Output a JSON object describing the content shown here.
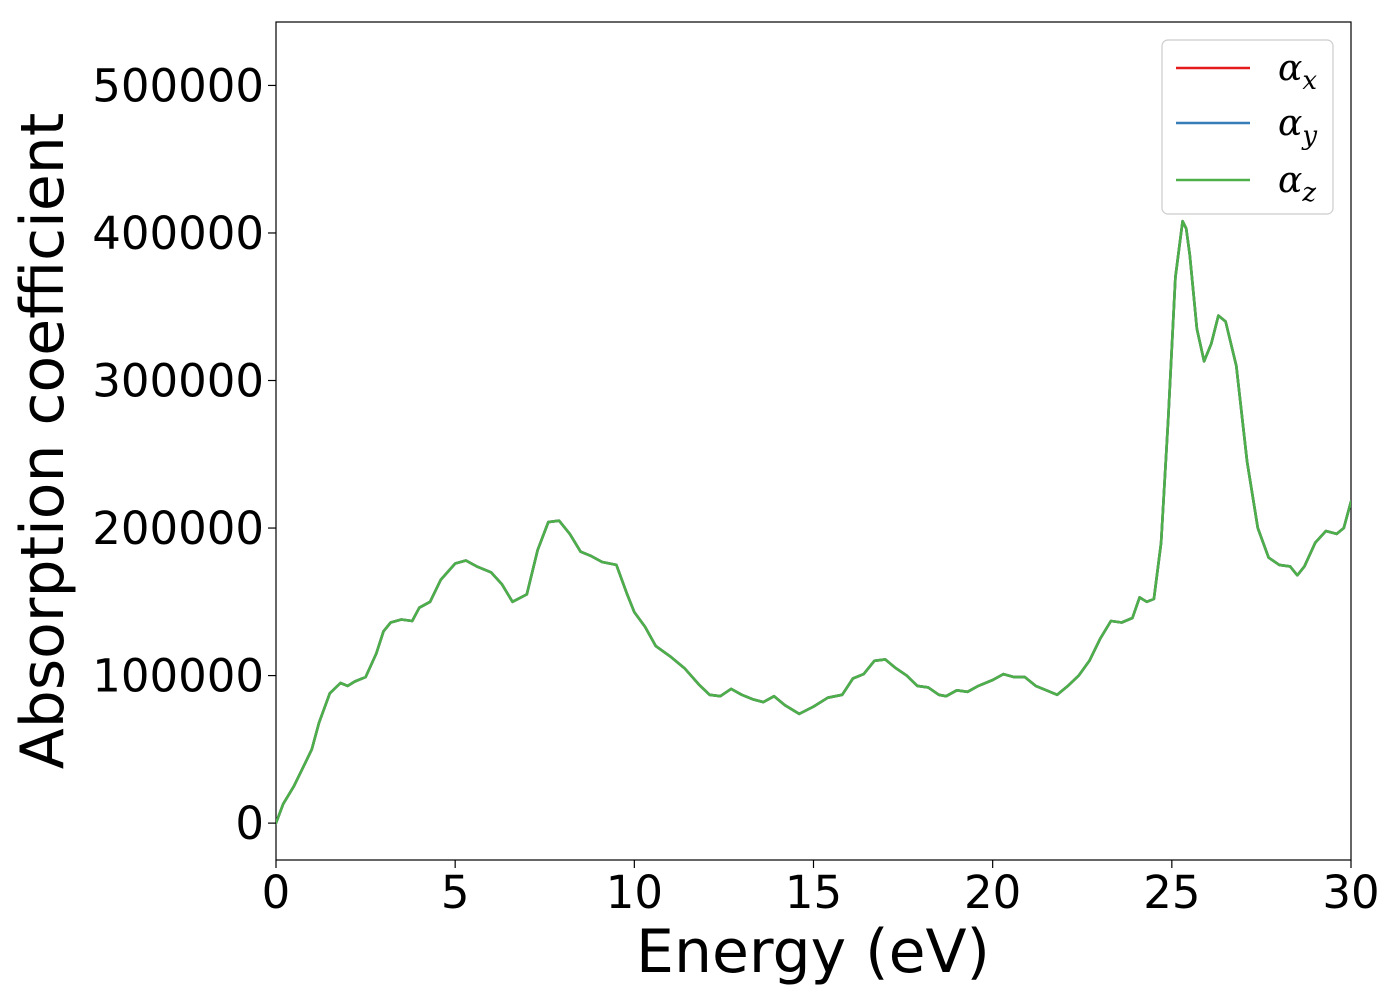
{
  "chart_data": {
    "type": "line",
    "xlabel": "Energy (eV)",
    "ylabel": "Absorption coefficient",
    "xlim": [
      0,
      30
    ],
    "ylim": [
      -25000,
      543000
    ],
    "xticks": [
      0,
      5,
      10,
      15,
      20,
      25,
      30
    ],
    "xtick_labels": [
      "0",
      "5",
      "10",
      "15",
      "20",
      "25",
      "30"
    ],
    "yticks": [
      0,
      100000,
      200000,
      300000,
      400000,
      500000
    ],
    "ytick_labels": [
      "0",
      "100000",
      "200000",
      "300000",
      "400000",
      "500000"
    ],
    "grid": false,
    "legend_position": "top-right",
    "x": [
      0,
      0.2,
      0.5,
      0.8,
      1.0,
      1.2,
      1.5,
      1.8,
      2.0,
      2.2,
      2.5,
      2.8,
      3.0,
      3.2,
      3.5,
      3.8,
      4.0,
      4.3,
      4.6,
      5.0,
      5.3,
      5.6,
      6.0,
      6.3,
      6.6,
      7.0,
      7.3,
      7.6,
      7.9,
      8.2,
      8.5,
      8.8,
      9.1,
      9.5,
      9.8,
      10.0,
      10.3,
      10.6,
      11.0,
      11.4,
      11.8,
      12.1,
      12.4,
      12.7,
      13.0,
      13.3,
      13.6,
      13.9,
      14.2,
      14.6,
      15.0,
      15.4,
      15.8,
      16.1,
      16.4,
      16.7,
      17.0,
      17.3,
      17.6,
      17.9,
      18.2,
      18.5,
      18.7,
      19.0,
      19.3,
      19.6,
      20.0,
      20.3,
      20.6,
      20.9,
      21.2,
      21.5,
      21.8,
      22.1,
      22.4,
      22.7,
      23.0,
      23.3,
      23.6,
      23.9,
      24.1,
      24.3,
      24.5,
      24.7,
      24.9,
      25.1,
      25.3,
      25.4,
      25.5,
      25.7,
      25.9,
      26.1,
      26.3,
      26.5,
      26.8,
      27.1,
      27.4,
      27.7,
      28.0,
      28.3,
      28.5,
      28.7,
      29.0,
      29.3,
      29.6,
      29.8,
      30.0
    ],
    "series": [
      {
        "name": "αx",
        "color": "#e41a1c",
        "values": [
          0,
          13000,
          25000,
          40000,
          50000,
          68000,
          88000,
          95000,
          93000,
          96000,
          99000,
          115000,
          130000,
          136000,
          138000,
          137000,
          146000,
          150000,
          165000,
          176000,
          178000,
          174000,
          170000,
          162000,
          150000,
          155000,
          185000,
          204000,
          205000,
          196000,
          184000,
          181000,
          177000,
          175000,
          155000,
          143000,
          133000,
          120000,
          113000,
          105000,
          94000,
          87000,
          86000,
          91000,
          87000,
          84000,
          82000,
          86000,
          80000,
          74000,
          79000,
          85000,
          87000,
          98000,
          101000,
          110000,
          111000,
          105000,
          100000,
          93000,
          92000,
          87000,
          86000,
          90000,
          89000,
          93000,
          97000,
          101000,
          99000,
          99000,
          93000,
          90000,
          87000,
          93000,
          100000,
          110000,
          125000,
          137000,
          136000,
          139000,
          153000,
          150000,
          152000,
          190000,
          275000,
          370000,
          408000,
          403000,
          385000,
          335000,
          313000,
          325000,
          344000,
          340000,
          310000,
          245000,
          200000,
          180000,
          175000,
          174000,
          168000,
          174000,
          190000,
          198000,
          196000,
          200000,
          218000
        ]
      },
      {
        "name": "αy",
        "color": "#377eb8",
        "values": [
          0,
          13000,
          25000,
          40000,
          50000,
          68000,
          88000,
          95000,
          93000,
          96000,
          99000,
          115000,
          130000,
          136000,
          138000,
          137000,
          146000,
          150000,
          165000,
          176000,
          178000,
          174000,
          170000,
          162000,
          150000,
          155000,
          185000,
          204000,
          205000,
          196000,
          184000,
          181000,
          177000,
          175000,
          155000,
          143000,
          133000,
          120000,
          113000,
          105000,
          94000,
          87000,
          86000,
          91000,
          87000,
          84000,
          82000,
          86000,
          80000,
          74000,
          79000,
          85000,
          87000,
          98000,
          101000,
          110000,
          111000,
          105000,
          100000,
          93000,
          92000,
          87000,
          86000,
          90000,
          89000,
          93000,
          97000,
          101000,
          99000,
          99000,
          93000,
          90000,
          87000,
          93000,
          100000,
          110000,
          125000,
          137000,
          136000,
          139000,
          153000,
          150000,
          152000,
          190000,
          275000,
          370000,
          408000,
          403000,
          385000,
          335000,
          313000,
          325000,
          344000,
          340000,
          310000,
          245000,
          200000,
          180000,
          175000,
          174000,
          168000,
          174000,
          190000,
          198000,
          196000,
          200000,
          218000
        ]
      },
      {
        "name": "αz",
        "color": "#4daf4a",
        "values": [
          0,
          13000,
          25000,
          40000,
          50000,
          68000,
          88000,
          95000,
          93000,
          96000,
          99000,
          115000,
          130000,
          136000,
          138000,
          137000,
          146000,
          150000,
          165000,
          176000,
          178000,
          174000,
          170000,
          162000,
          150000,
          155000,
          185000,
          204000,
          205000,
          196000,
          184000,
          181000,
          177000,
          175000,
          155000,
          143000,
          133000,
          120000,
          113000,
          105000,
          94000,
          87000,
          86000,
          91000,
          87000,
          84000,
          82000,
          86000,
          80000,
          74000,
          79000,
          85000,
          87000,
          98000,
          101000,
          110000,
          111000,
          105000,
          100000,
          93000,
          92000,
          87000,
          86000,
          90000,
          89000,
          93000,
          97000,
          101000,
          99000,
          99000,
          93000,
          90000,
          87000,
          93000,
          100000,
          110000,
          125000,
          137000,
          136000,
          139000,
          153000,
          150000,
          152000,
          190000,
          275000,
          370000,
          408000,
          403000,
          385000,
          335000,
          313000,
          325000,
          344000,
          340000,
          310000,
          245000,
          200000,
          180000,
          175000,
          174000,
          168000,
          174000,
          190000,
          198000,
          196000,
          200000,
          218000
        ]
      }
    ],
    "legend": [
      {
        "symbol": "α",
        "sub": "x",
        "color": "#e41a1c"
      },
      {
        "symbol": "α",
        "sub": "y",
        "color": "#377eb8"
      },
      {
        "symbol": "α",
        "sub": "z",
        "color": "#4daf4a"
      }
    ]
  }
}
